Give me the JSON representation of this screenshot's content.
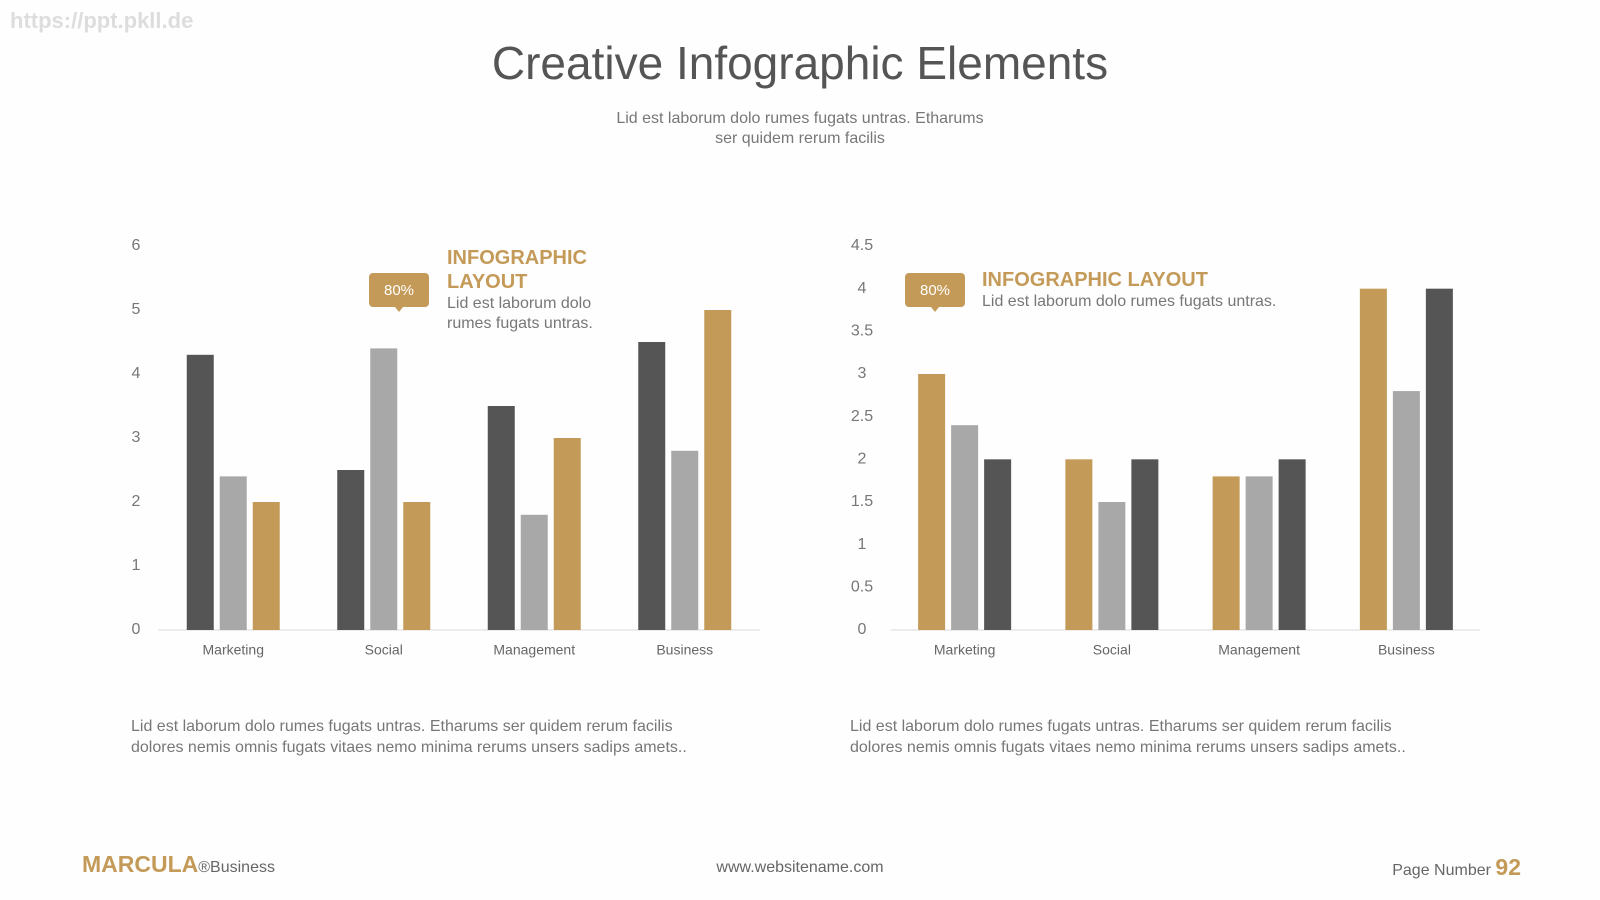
{
  "watermark": "https://ppt.pkll.de",
  "header": {
    "title": "Creative Infographic Elements",
    "subtitle": [
      "Lid est laborum dolo rumes fugats untras. Etharums",
      "ser quidem rerum facilis"
    ]
  },
  "chart_data": [
    {
      "type": "bar",
      "categories": [
        "Marketing",
        "Social",
        "Management",
        "Business"
      ],
      "series": [
        {
          "color": "#555555",
          "values": [
            4.3,
            2.5,
            3.5,
            4.5
          ]
        },
        {
          "color": "#a8a8a8",
          "values": [
            2.4,
            4.4,
            1.8,
            2.8
          ]
        },
        {
          "color": "#c49a58",
          "values": [
            2.0,
            2.0,
            3.0,
            5.0
          ]
        }
      ],
      "ylim": [
        0,
        6
      ],
      "yticks": [
        0,
        1,
        2,
        3,
        4,
        5,
        6
      ],
      "grid": false,
      "annotation": {
        "badge": "80%",
        "heading": "INFOGRAPHIC LAYOUT",
        "text": [
          "Lid est laborum dolo",
          "rumes fugats untras."
        ]
      },
      "caption": [
        "Lid est laborum dolo rumes fugats untras. Etharums ser quidem rerum facilis",
        "dolores nemis omnis fugats vitaes nemo minima rerums unsers sadips amets.."
      ]
    },
    {
      "type": "bar",
      "categories": [
        "Marketing",
        "Social",
        "Management",
        "Business"
      ],
      "series": [
        {
          "color": "#c49a58",
          "values": [
            3.0,
            2.0,
            1.8,
            4.0
          ]
        },
        {
          "color": "#a8a8a8",
          "values": [
            2.4,
            1.5,
            1.8,
            2.8
          ]
        },
        {
          "color": "#555555",
          "values": [
            2.0,
            2.0,
            2.0,
            4.0
          ]
        }
      ],
      "ylim": [
        0,
        4.5
      ],
      "yticks": [
        0,
        0.5,
        1,
        1.5,
        2,
        2.5,
        3,
        3.5,
        4,
        4.5
      ],
      "grid": false,
      "annotation": {
        "badge": "80%",
        "heading": "INFOGRAPHIC LAYOUT",
        "text": [
          "Lid est laborum dolo rumes fugats untras."
        ]
      },
      "caption": [
        "Lid est laborum dolo rumes fugats untras. Etharums ser quidem rerum facilis",
        "dolores nemis omnis fugats vitaes nemo minima rerums unsers sadips amets.."
      ]
    }
  ],
  "footer": {
    "brand": "MARCULA",
    "brand_suffix": "®Business",
    "website": "www.websitename.com",
    "page_label": "Page Number",
    "page_number": 92
  }
}
